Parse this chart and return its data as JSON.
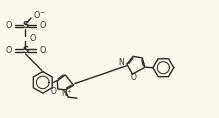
{
  "bg_color": "#faf8ec",
  "line_color": "#2a2a2a",
  "lw": 1.0,
  "xlim": [
    0,
    10.5
  ],
  "ylim": [
    0,
    5.7
  ]
}
